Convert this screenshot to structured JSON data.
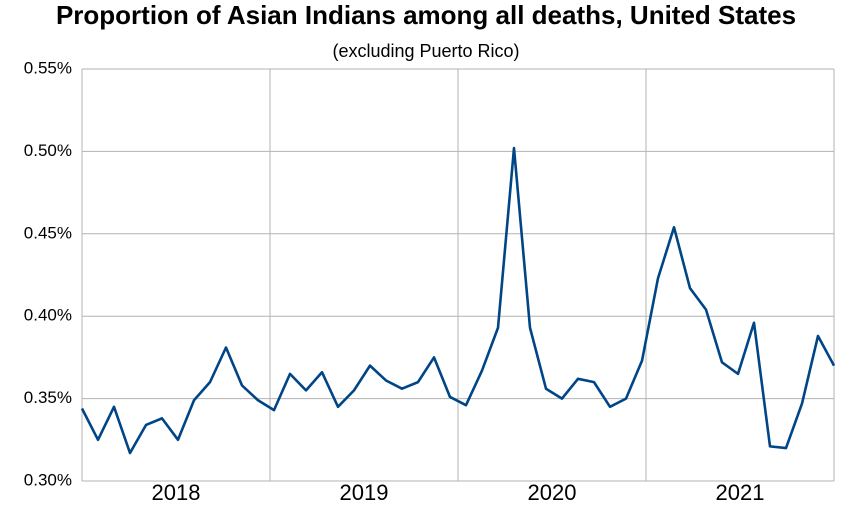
{
  "chart_data": {
    "type": "line",
    "title": "Proportion of Asian Indians among all deaths, United States",
    "subtitle": "(excluding Puerto Rico)",
    "categories": [
      null,
      null,
      null,
      null,
      null,
      null,
      "2018",
      null,
      null,
      null,
      null,
      null,
      null,
      null,
      null,
      null,
      null,
      null,
      "2019",
      null,
      null,
      null,
      null,
      null,
      null,
      null,
      null,
      null,
      null,
      null,
      "2020",
      null,
      null,
      null,
      null,
      null,
      null,
      null,
      null,
      null,
      null,
      null,
      "2021",
      null,
      null,
      null,
      null,
      null
    ],
    "series": [
      {
        "color": "#004586",
        "values": [
          0.344,
          0.325,
          0.345,
          0.317,
          0.334,
          0.338,
          0.325,
          0.349,
          0.36,
          0.381,
          0.358,
          0.349,
          0.343,
          0.365,
          0.355,
          0.366,
          0.345,
          0.355,
          0.37,
          0.361,
          0.356,
          0.36,
          0.375,
          0.351,
          0.346,
          0.367,
          0.393,
          0.502,
          0.393,
          0.356,
          0.35,
          0.362,
          0.36,
          0.345,
          0.35,
          0.373,
          0.423,
          0.454,
          0.417,
          0.404,
          0.372,
          0.365,
          0.396,
          0.321,
          0.32,
          0.347,
          0.388,
          0.37
        ]
      }
    ],
    "ylim": [
      0.3,
      0.55
    ],
    "yticks": [
      {
        "value": 0.3,
        "label": "0.30%"
      },
      {
        "value": 0.35,
        "label": "0.35%"
      },
      {
        "value": 0.4,
        "label": "0.40%"
      },
      {
        "value": 0.45,
        "label": "0.45%"
      },
      {
        "value": 0.5,
        "label": "0.50%"
      },
      {
        "value": 0.55,
        "label": "0.55%"
      }
    ],
    "grid": true
  }
}
